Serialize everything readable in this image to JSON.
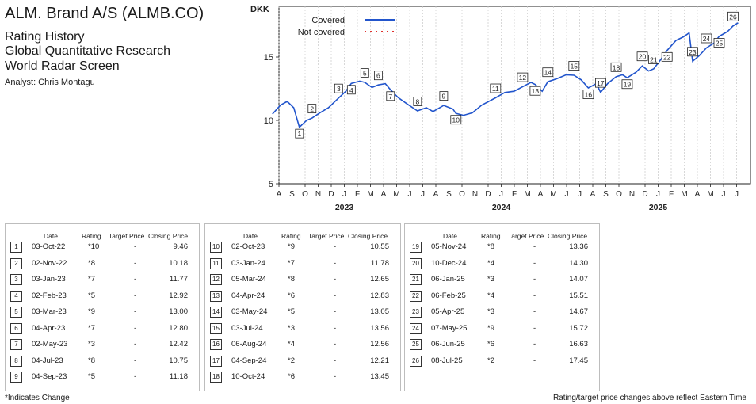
{
  "header": {
    "title": "ALM. Brand A/S (ALMB.CO)",
    "lines": [
      "Rating History",
      "Global Quantitative Research",
      "World Radar Screen"
    ],
    "analyst": "Analyst: Chris Montagu"
  },
  "chart_data": {
    "type": "line",
    "ylabel": "DKK",
    "ylim": [
      5,
      19
    ],
    "yticks": [
      5,
      10,
      15
    ],
    "grid": "vertical-dashed",
    "legend": [
      {
        "name": "Covered",
        "style": "solid",
        "color": "#2255cc"
      },
      {
        "name": "Not covered",
        "style": "dotted",
        "color": "#e0322e"
      }
    ],
    "months": [
      "A",
      "S",
      "O",
      "N",
      "D",
      "J",
      "F",
      "M",
      "A",
      "M",
      "J",
      "J",
      "A",
      "S",
      "O",
      "N",
      "D",
      "J",
      "F",
      "M",
      "A",
      "M",
      "J",
      "J",
      "A",
      "S",
      "O",
      "N",
      "D",
      "J",
      "F",
      "M",
      "A",
      "M",
      "J",
      "J"
    ],
    "years": [
      {
        "label": "2023",
        "month_index": 5
      },
      {
        "label": "2024",
        "month_index": 17
      },
      {
        "label": "2025",
        "month_index": 29
      }
    ],
    "series": [
      {
        "color": "#2255cc",
        "points": [
          [
            "2022-08-01",
            10.5
          ],
          [
            "2022-08-20",
            11.2
          ],
          [
            "2022-09-05",
            11.5
          ],
          [
            "2022-09-20",
            11.0
          ],
          [
            "2022-10-03",
            9.46
          ],
          [
            "2022-10-20",
            10.0
          ],
          [
            "2022-11-02",
            10.18
          ],
          [
            "2022-11-20",
            10.6
          ],
          [
            "2022-12-10",
            11.0
          ],
          [
            "2023-01-03",
            11.77
          ],
          [
            "2023-01-20",
            12.3
          ],
          [
            "2023-02-02",
            12.92
          ],
          [
            "2023-02-20",
            13.1
          ],
          [
            "2023-03-03",
            13.0
          ],
          [
            "2023-03-20",
            12.6
          ],
          [
            "2023-04-04",
            12.8
          ],
          [
            "2023-04-20",
            12.9
          ],
          [
            "2023-05-02",
            12.42
          ],
          [
            "2023-05-20",
            11.8
          ],
          [
            "2023-06-10",
            11.3
          ],
          [
            "2023-07-04",
            10.75
          ],
          [
            "2023-07-25",
            11.0
          ],
          [
            "2023-08-10",
            10.7
          ],
          [
            "2023-09-04",
            11.18
          ],
          [
            "2023-09-25",
            10.9
          ],
          [
            "2023-10-02",
            10.55
          ],
          [
            "2023-10-20",
            10.4
          ],
          [
            "2023-11-10",
            10.6
          ],
          [
            "2023-12-01",
            11.2
          ],
          [
            "2024-01-03",
            11.78
          ],
          [
            "2024-01-25",
            12.2
          ],
          [
            "2024-02-15",
            12.3
          ],
          [
            "2024-03-05",
            12.65
          ],
          [
            "2024-03-25",
            13.0
          ],
          [
            "2024-04-04",
            12.83
          ],
          [
            "2024-04-20",
            12.3
          ],
          [
            "2024-05-03",
            13.05
          ],
          [
            "2024-05-25",
            13.3
          ],
          [
            "2024-06-15",
            13.6
          ],
          [
            "2024-07-03",
            13.56
          ],
          [
            "2024-07-20",
            13.2
          ],
          [
            "2024-08-06",
            12.56
          ],
          [
            "2024-08-25",
            12.9
          ],
          [
            "2024-09-04",
            12.21
          ],
          [
            "2024-09-20",
            12.9
          ],
          [
            "2024-10-10",
            13.45
          ],
          [
            "2024-10-25",
            13.6
          ],
          [
            "2024-11-05",
            13.36
          ],
          [
            "2024-11-25",
            13.8
          ],
          [
            "2024-12-10",
            14.3
          ],
          [
            "2024-12-25",
            13.9
          ],
          [
            "2025-01-06",
            14.07
          ],
          [
            "2025-01-25",
            14.9
          ],
          [
            "2025-02-06",
            15.51
          ],
          [
            "2025-02-25",
            16.3
          ],
          [
            "2025-03-15",
            16.6
          ],
          [
            "2025-03-28",
            16.9
          ],
          [
            "2025-04-05",
            14.67
          ],
          [
            "2025-04-20",
            15.1
          ],
          [
            "2025-05-07",
            15.72
          ],
          [
            "2025-05-25",
            16.1
          ],
          [
            "2025-06-06",
            16.63
          ],
          [
            "2025-06-25",
            17.0
          ],
          [
            "2025-07-08",
            17.45
          ],
          [
            "2025-07-20",
            17.7
          ]
        ]
      }
    ],
    "markers": [
      {
        "n": "1",
        "date": "2022-10-03"
      },
      {
        "n": "2",
        "date": "2022-11-02"
      },
      {
        "n": "3",
        "date": "2023-01-03"
      },
      {
        "n": "4",
        "date": "2023-02-02"
      },
      {
        "n": "5",
        "date": "2023-03-03"
      },
      {
        "n": "6",
        "date": "2023-04-04"
      },
      {
        "n": "7",
        "date": "2023-05-02"
      },
      {
        "n": "8",
        "date": "2023-07-04"
      },
      {
        "n": "9",
        "date": "2023-09-04"
      },
      {
        "n": "10",
        "date": "2023-10-02"
      },
      {
        "n": "11",
        "date": "2024-01-03"
      },
      {
        "n": "12",
        "date": "2024-03-05"
      },
      {
        "n": "13",
        "date": "2024-04-04"
      },
      {
        "n": "14",
        "date": "2024-05-03"
      },
      {
        "n": "15",
        "date": "2024-07-03"
      },
      {
        "n": "16",
        "date": "2024-08-06"
      },
      {
        "n": "17",
        "date": "2024-09-04"
      },
      {
        "n": "18",
        "date": "2024-10-10"
      },
      {
        "n": "19",
        "date": "2024-11-05"
      },
      {
        "n": "20",
        "date": "2024-12-10"
      },
      {
        "n": "21",
        "date": "2025-01-06"
      },
      {
        "n": "22",
        "date": "2025-02-06"
      },
      {
        "n": "23",
        "date": "2025-04-05"
      },
      {
        "n": "24",
        "date": "2025-05-07"
      },
      {
        "n": "25",
        "date": "2025-06-06"
      },
      {
        "n": "26",
        "date": "2025-07-08"
      }
    ]
  },
  "table": {
    "headers": [
      "Date",
      "Rating",
      "Target Price",
      "Closing Price"
    ],
    "panels": [
      [
        {
          "n": "1",
          "date": "03-Oct-22",
          "rating": "*10",
          "target": "-",
          "close": "9.46"
        },
        {
          "n": "2",
          "date": "02-Nov-22",
          "rating": "*8",
          "target": "-",
          "close": "10.18"
        },
        {
          "n": "3",
          "date": "03-Jan-23",
          "rating": "*7",
          "target": "-",
          "close": "11.77"
        },
        {
          "n": "4",
          "date": "02-Feb-23",
          "rating": "*5",
          "target": "-",
          "close": "12.92"
        },
        {
          "n": "5",
          "date": "03-Mar-23",
          "rating": "*9",
          "target": "-",
          "close": "13.00"
        },
        {
          "n": "6",
          "date": "04-Apr-23",
          "rating": "*7",
          "target": "-",
          "close": "12.80"
        },
        {
          "n": "7",
          "date": "02-May-23",
          "rating": "*3",
          "target": "-",
          "close": "12.42"
        },
        {
          "n": "8",
          "date": "04-Jul-23",
          "rating": "*8",
          "target": "-",
          "close": "10.75"
        },
        {
          "n": "9",
          "date": "04-Sep-23",
          "rating": "*5",
          "target": "-",
          "close": "11.18"
        }
      ],
      [
        {
          "n": "10",
          "date": "02-Oct-23",
          "rating": "*9",
          "target": "-",
          "close": "10.55"
        },
        {
          "n": "11",
          "date": "03-Jan-24",
          "rating": "*7",
          "target": "-",
          "close": "11.78"
        },
        {
          "n": "12",
          "date": "05-Mar-24",
          "rating": "*8",
          "target": "-",
          "close": "12.65"
        },
        {
          "n": "13",
          "date": "04-Apr-24",
          "rating": "*6",
          "target": "-",
          "close": "12.83"
        },
        {
          "n": "14",
          "date": "03-May-24",
          "rating": "*5",
          "target": "-",
          "close": "13.05"
        },
        {
          "n": "15",
          "date": "03-Jul-24",
          "rating": "*3",
          "target": "-",
          "close": "13.56"
        },
        {
          "n": "16",
          "date": "06-Aug-24",
          "rating": "*4",
          "target": "-",
          "close": "12.56"
        },
        {
          "n": "17",
          "date": "04-Sep-24",
          "rating": "*2",
          "target": "-",
          "close": "12.21"
        },
        {
          "n": "18",
          "date": "10-Oct-24",
          "rating": "*6",
          "target": "-",
          "close": "13.45"
        }
      ],
      [
        {
          "n": "19",
          "date": "05-Nov-24",
          "rating": "*8",
          "target": "-",
          "close": "13.36"
        },
        {
          "n": "20",
          "date": "10-Dec-24",
          "rating": "*4",
          "target": "-",
          "close": "14.30"
        },
        {
          "n": "21",
          "date": "06-Jan-25",
          "rating": "*3",
          "target": "-",
          "close": "14.07"
        },
        {
          "n": "22",
          "date": "06-Feb-25",
          "rating": "*4",
          "target": "-",
          "close": "15.51"
        },
        {
          "n": "23",
          "date": "05-Apr-25",
          "rating": "*3",
          "target": "-",
          "close": "14.67"
        },
        {
          "n": "24",
          "date": "07-May-25",
          "rating": "*9",
          "target": "-",
          "close": "15.72"
        },
        {
          "n": "25",
          "date": "06-Jun-25",
          "rating": "*6",
          "target": "-",
          "close": "16.63"
        },
        {
          "n": "26",
          "date": "08-Jul-25",
          "rating": "*2",
          "target": "-",
          "close": "17.45"
        }
      ]
    ]
  },
  "footer": {
    "left": "*Indicates Change",
    "right": "Rating/target price changes above reflect Eastern Time"
  }
}
